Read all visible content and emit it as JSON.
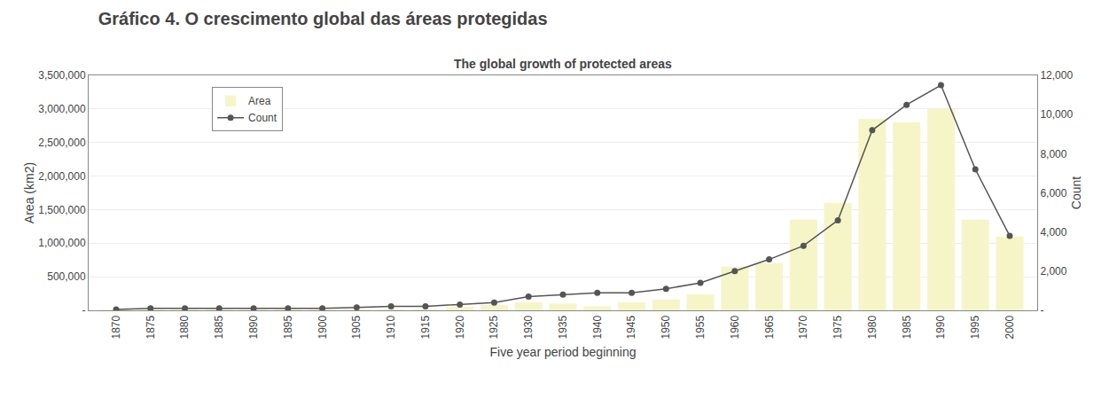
{
  "chart_data": {
    "type": "bar",
    "title": "Gráfico 4. O crescimento global das áreas protegidas",
    "subtitle": "The global growth of protected areas",
    "xlabel": "Five year period beginning",
    "ylabel": "Area (km2)",
    "y2label": "Count",
    "x": [
      1870,
      1875,
      1880,
      1885,
      1890,
      1895,
      1900,
      1905,
      1910,
      1915,
      1920,
      1925,
      1930,
      1935,
      1940,
      1945,
      1950,
      1955,
      1960,
      1965,
      1970,
      1975,
      1980,
      1985,
      1990,
      1995,
      2000
    ],
    "series": [
      {
        "name": "Area",
        "type": "bar",
        "color": "#f5f5c8",
        "values": [
          5000,
          5000,
          5000,
          5000,
          10000,
          5000,
          5000,
          5000,
          5000,
          5000,
          50000,
          80000,
          120000,
          100000,
          60000,
          120000,
          160000,
          240000,
          650000,
          700000,
          1350000,
          1600000,
          2850000,
          2800000,
          3000000,
          1350000,
          1100000
        ]
      },
      {
        "name": "Count",
        "type": "line",
        "color": "#555555",
        "marker": "circle",
        "axis": "y2",
        "values": [
          50,
          100,
          100,
          100,
          100,
          100,
          100,
          150,
          200,
          200,
          300,
          400,
          700,
          800,
          900,
          900,
          1100,
          1400,
          2000,
          2600,
          3300,
          4600,
          9200,
          10500,
          11500,
          7200,
          3800
        ]
      }
    ],
    "xlim": [
      1866,
      2004
    ],
    "xticks": [
      1870,
      1875,
      1880,
      1885,
      1890,
      1895,
      1900,
      1905,
      1910,
      1915,
      1920,
      1925,
      1930,
      1935,
      1940,
      1945,
      1950,
      1955,
      1960,
      1965,
      1970,
      1975,
      1980,
      1985,
      1990,
      1995,
      2000
    ],
    "ylim": [
      0,
      3500000
    ],
    "yticks": [
      {
        "value": 0,
        "label": "-"
      },
      {
        "value": 500000,
        "label": "500,000"
      },
      {
        "value": 1000000,
        "label": "1,000,000"
      },
      {
        "value": 1500000,
        "label": "1,500,000"
      },
      {
        "value": 2000000,
        "label": "2,000,000"
      },
      {
        "value": 2500000,
        "label": "2,500,000"
      },
      {
        "value": 3000000,
        "label": "3,000,000"
      },
      {
        "value": 3500000,
        "label": "3,500,000"
      }
    ],
    "y2lim": [
      0,
      12000
    ],
    "y2ticks": [
      {
        "value": 0,
        "label": "-"
      },
      {
        "value": 2000,
        "label": "2,000"
      },
      {
        "value": 4000,
        "label": "4,000"
      },
      {
        "value": 6000,
        "label": "6,000"
      },
      {
        "value": 8000,
        "label": "8,000"
      },
      {
        "value": 10000,
        "label": "10,000"
      },
      {
        "value": 12000,
        "label": "12,000"
      }
    ],
    "grid": true,
    "legend": "upper left"
  }
}
